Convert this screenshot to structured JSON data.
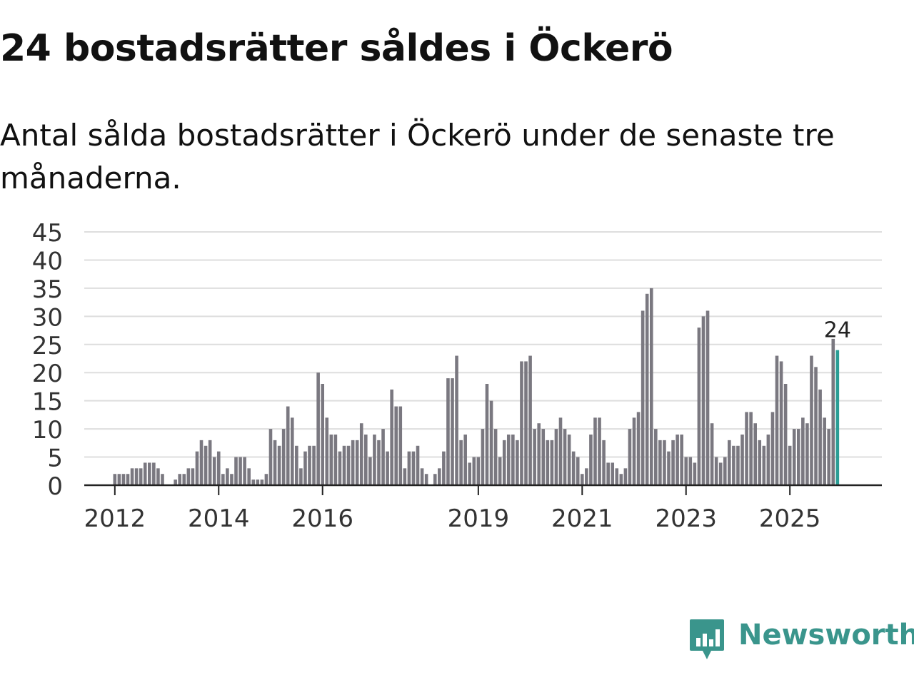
{
  "title": "24 bostadsrätter såldes i Öckerö",
  "subtitle": "Antal sålda bostadsrätter i Öckerö under de senaste tre månaderna.",
  "brand": {
    "name": "Newsworthy",
    "color": "#3a958c"
  },
  "colors": {
    "bar": "#7a7880",
    "highlight": "#2a9d95",
    "grid": "#dedede",
    "axis": "#222222"
  },
  "chart_data": {
    "type": "bar",
    "title": "Antal sålda bostadsrätter i Öckerö under de senaste tre månaderna.",
    "xlabel": "",
    "ylabel": "",
    "ylim": [
      0,
      45
    ],
    "yticks": [
      "0",
      "5",
      "10",
      "15",
      "20",
      "25",
      "30",
      "35",
      "40",
      "45"
    ],
    "grid": true,
    "start_month": "2011-11",
    "xtick_labels": [
      {
        "label": "2012",
        "index": 2
      },
      {
        "label": "2014",
        "index": 26
      },
      {
        "label": "2016",
        "index": 50
      },
      {
        "label": "2019",
        "index": 86
      },
      {
        "label": "2021",
        "index": 110
      },
      {
        "label": "2023",
        "index": 134
      },
      {
        "label": "2025",
        "index": 158
      }
    ],
    "highlight_index": 169,
    "highlight_label": "24",
    "values": [
      0,
      0,
      2,
      2,
      2,
      2,
      3,
      3,
      3,
      4,
      4,
      4,
      3,
      2,
      0,
      0,
      1,
      2,
      2,
      3,
      3,
      6,
      8,
      7,
      8,
      5,
      6,
      2,
      3,
      2,
      5,
      5,
      5,
      3,
      1,
      1,
      1,
      2,
      10,
      8,
      7,
      10,
      14,
      12,
      7,
      3,
      6,
      7,
      7,
      20,
      18,
      12,
      9,
      9,
      6,
      7,
      7,
      8,
      8,
      11,
      9,
      5,
      9,
      8,
      10,
      6,
      17,
      14,
      14,
      3,
      6,
      6,
      7,
      3,
      2,
      0,
      2,
      3,
      6,
      19,
      19,
      23,
      8,
      9,
      4,
      5,
      5,
      10,
      18,
      15,
      10,
      5,
      8,
      9,
      9,
      8,
      22,
      22,
      23,
      10,
      11,
      10,
      8,
      8,
      10,
      12,
      10,
      9,
      6,
      5,
      2,
      3,
      9,
      12,
      12,
      8,
      4,
      4,
      3,
      2,
      3,
      10,
      12,
      13,
      31,
      34,
      35,
      10,
      8,
      8,
      6,
      8,
      9,
      9,
      5,
      5,
      4,
      28,
      30,
      31,
      11,
      5,
      4,
      5,
      8,
      7,
      7,
      9,
      13,
      13,
      11,
      8,
      7,
      9,
      13,
      23,
      22,
      18,
      7,
      10,
      10,
      12,
      11,
      23,
      21,
      17,
      12,
      10,
      26,
      24
    ]
  }
}
